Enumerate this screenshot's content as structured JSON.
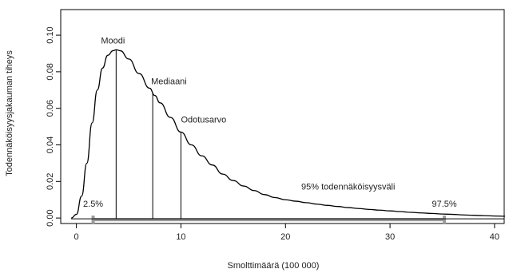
{
  "chart_data": {
    "type": "line",
    "title": "",
    "xlabel": "Smolttimäärä (100 000)",
    "ylabel": "Todennäköisyysjakauman tiheys",
    "xlim": [
      -1.5,
      41
    ],
    "ylim": [
      -0.003,
      0.114
    ],
    "xticks": [
      0,
      10,
      20,
      30,
      40
    ],
    "yticks": [
      0.0,
      0.02,
      0.04,
      0.06,
      0.08,
      0.1
    ],
    "ytick_labels": [
      "0.00",
      "0.02",
      "0.04",
      "0.06",
      "0.08",
      "0.10"
    ],
    "grid": false,
    "series": [
      {
        "x": [
          -0.5,
          0,
          0.5,
          1,
          1.5,
          2,
          2.5,
          3,
          3.5,
          3.8,
          4.2,
          5,
          6,
          7,
          7.5,
          8,
          9,
          10,
          11,
          12,
          13,
          14,
          15,
          16,
          17,
          18,
          19,
          20,
          21,
          22,
          23,
          24,
          25,
          26,
          27,
          28,
          29,
          30,
          31,
          32,
          33,
          34,
          35,
          36,
          37,
          38,
          39,
          40,
          41
        ],
        "y": [
          0.0,
          0.002,
          0.012,
          0.03,
          0.052,
          0.07,
          0.082,
          0.089,
          0.0915,
          0.092,
          0.0915,
          0.087,
          0.079,
          0.071,
          0.067,
          0.063,
          0.055,
          0.047,
          0.04,
          0.034,
          0.029,
          0.024,
          0.0205,
          0.0175,
          0.015,
          0.0128,
          0.0112,
          0.01,
          0.0092,
          0.0084,
          0.0076,
          0.0069,
          0.0063,
          0.0057,
          0.0052,
          0.0047,
          0.0043,
          0.0039,
          0.0035,
          0.0031,
          0.0028,
          0.0025,
          0.0022,
          0.002,
          0.0017,
          0.0015,
          0.0013,
          0.0011,
          0.001
        ]
      }
    ],
    "markers": [
      {
        "label": "Moodi",
        "x": 3.8,
        "y": 0.092
      },
      {
        "label": "Mediaani",
        "x": 7.3,
        "y": 0.068
      },
      {
        "label": "Odotusarvo",
        "x": 10,
        "y": 0.047
      }
    ],
    "interval": {
      "label": "95% todennäköisyysväli",
      "lower": 1.6,
      "upper": 35.2,
      "lower_label": "2.5%",
      "upper_label": "97.5%"
    }
  }
}
